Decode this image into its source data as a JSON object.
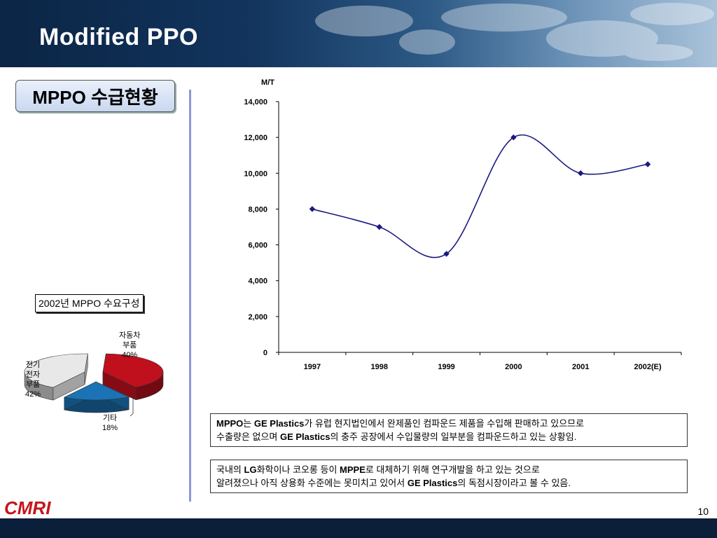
{
  "slide": {
    "title": "Modified PPO",
    "section_label": "MPPO 수급현황",
    "page_number": "10",
    "logo": "CMRI"
  },
  "pie": {
    "title": "2002년 MPPO 수요구성",
    "slices": [
      {
        "name_lines": [
          "자동차",
          "부품"
        ],
        "label": "자동차 부품",
        "value": 40,
        "value_text": "40%",
        "color": "#c0101e"
      },
      {
        "name_lines": [
          "기타"
        ],
        "label": "기타",
        "value": 18,
        "value_text": "18%",
        "color": "#1a73b5"
      },
      {
        "name_lines": [
          "전기",
          "전자",
          "부품"
        ],
        "label": "전기 전자 부품",
        "value": 42,
        "value_text": "42%",
        "color": "#e8e8e8"
      }
    ]
  },
  "chart_data": {
    "type": "line",
    "ylabel": "M/T",
    "categories": [
      "1997",
      "1998",
      "1999",
      "2000",
      "2001",
      "2002(E)"
    ],
    "values": [
      8000,
      7000,
      5500,
      12000,
      10000,
      10500
    ],
    "ylim": [
      0,
      14000
    ],
    "yticks": [
      "0",
      "2,000",
      "4,000",
      "6,000",
      "8,000",
      "10,000",
      "12,000",
      "14,000"
    ],
    "line_color": "#1a1a80",
    "grid": false
  },
  "notes": [
    {
      "line1": [
        {
          "t": "MPPO",
          "b": true
        },
        {
          "t": "는 "
        },
        {
          "t": "GE Plastics",
          "b": true
        },
        {
          "t": "가 유럽 현지법인에서 완제품인 컴파운드 제품을 수입해 판매하고 있으므로"
        }
      ],
      "line2": [
        {
          "t": "수출량은 없으며 "
        },
        {
          "t": "GE Plastics",
          "b": true
        },
        {
          "t": "의 충주 공장에서 수입물량의 일부분을 컴파운드하고 있는 상황임."
        }
      ]
    },
    {
      "line1": [
        {
          "t": "국내의 "
        },
        {
          "t": "LG",
          "b": true
        },
        {
          "t": "화학이나 코오롱 등이 "
        },
        {
          "t": "MPPE",
          "b": true
        },
        {
          "t": "로 대체하기 위해 연구개발을 하고 있는 것으로"
        }
      ],
      "line2": [
        {
          "t": "알려졌으나 아직 상용화 수준에는 못미치고 있어서 "
        },
        {
          "t": "GE Plastics",
          "b": true
        },
        {
          "t": "의 독점시장이라고 볼 수 있음."
        }
      ]
    }
  ]
}
